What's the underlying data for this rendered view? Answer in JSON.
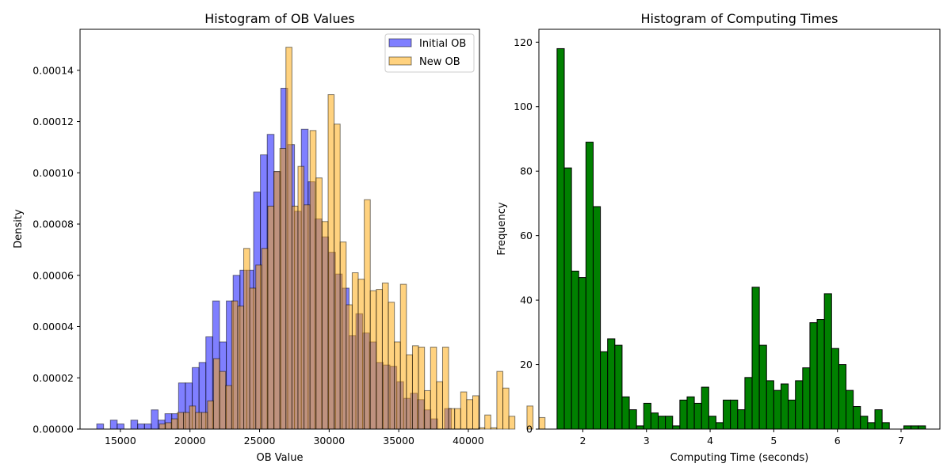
{
  "chart_data": [
    {
      "type": "histogram",
      "title": "Histogram of OB Values",
      "xlabel": "OB Value",
      "ylabel": "Density",
      "xlim": [
        12100,
        40800
      ],
      "ylim": [
        0,
        0.000156
      ],
      "x_ticks": [
        15000,
        20000,
        25000,
        30000,
        35000,
        40000
      ],
      "x_tick_labels": [
        "15000",
        "20000",
        "25000",
        "30000",
        "35000",
        "40000"
      ],
      "y_ticks": [
        0,
        2e-05,
        4e-05,
        6e-05,
        8e-05,
        0.0001,
        0.00012,
        0.00014
      ],
      "y_tick_labels": [
        "0.00000",
        "0.00002",
        "0.00004",
        "0.00006",
        "0.00008",
        "0.00010",
        "0.00012",
        "0.00014"
      ],
      "legend_position": "top-right",
      "series": [
        {
          "name": "Initial OB",
          "color": "#0000ff",
          "alpha": 0.5,
          "bin_start": 13300,
          "bin_width": 490,
          "values": [
            2e-06,
            0,
            3.5e-06,
            2e-06,
            0,
            3.5e-06,
            2e-06,
            2e-06,
            7.5e-06,
            3.5e-06,
            6e-06,
            6e-06,
            1.8e-05,
            1.8e-05,
            2.4e-05,
            2.6e-05,
            3.6e-05,
            5e-05,
            3.4e-05,
            5e-05,
            6e-05,
            6.2e-05,
            6.2e-05,
            9.25e-05,
            0.000107,
            0.000115,
            0.0001005,
            0.000133,
            0.000111,
            8.5e-05,
            0.000117,
            9.65e-05,
            8.2e-05,
            7.5e-05,
            6.9e-05,
            6.05e-05,
            5.5e-05,
            3.65e-05,
            4.5e-05,
            3.75e-05,
            3.4e-05,
            2.6e-05,
            2.5e-05,
            2.45e-05,
            1.85e-05,
            1.2e-05,
            1.4e-05,
            1.15e-05,
            7.5e-06,
            4e-06,
            0,
            8e-06
          ]
        },
        {
          "name": "New OB",
          "color": "#ffa500",
          "alpha": 0.5,
          "bin_start": 17800,
          "bin_width": 433,
          "values": [
            2e-06,
            2.5e-06,
            4e-06,
            6.5e-06,
            6.5e-06,
            9e-06,
            6.5e-06,
            6.5e-06,
            1.1e-05,
            2.75e-05,
            2.25e-05,
            1.7e-05,
            5e-05,
            4.8e-05,
            7.05e-05,
            5.5e-05,
            6.4e-05,
            7.05e-05,
            8.7e-05,
            0.0001005,
            0.0001095,
            0.000149,
            8.7e-05,
            0.0001025,
            8.75e-05,
            0.0001165,
            9.8e-05,
            8.1e-05,
            0.0001305,
            0.000119,
            7.3e-05,
            4.85e-05,
            6.1e-05,
            5.85e-05,
            8.95e-05,
            5.4e-05,
            5.45e-05,
            5.7e-05,
            4.95e-05,
            3.4e-05,
            5.65e-05,
            2.9e-05,
            3.25e-05,
            3.2e-05,
            1.5e-05,
            3.2e-05,
            1.85e-05,
            3.2e-05,
            8e-06,
            8e-06,
            1.45e-05,
            1.15e-05,
            1.3e-05,
            5e-07,
            5.5e-06,
            5e-07,
            2.25e-05,
            1.6e-05,
            5e-06,
            0,
            0,
            9e-06,
            0,
            4.5e-06
          ]
        }
      ]
    },
    {
      "type": "histogram",
      "title": "Histogram of Computing Times",
      "xlabel": "Computing Time (seconds)",
      "ylabel": "Frequency",
      "xlim": [
        1.31,
        7.61
      ],
      "ylim": [
        0,
        124
      ],
      "x_ticks": [
        2,
        3,
        4,
        5,
        6,
        7
      ],
      "x_tick_labels": [
        "2",
        "3",
        "4",
        "5",
        "6",
        "7"
      ],
      "y_ticks": [
        0,
        20,
        40,
        60,
        80,
        100,
        120
      ],
      "y_tick_labels": [
        "0",
        "20",
        "40",
        "60",
        "80",
        "100",
        "120"
      ],
      "series": [
        {
          "color": "#008000",
          "alpha": 1,
          "bin_start": 1.595,
          "bin_width": 0.1135,
          "values": [
            118,
            81,
            49,
            47,
            89,
            69,
            24,
            28,
            26,
            10,
            6,
            1,
            8,
            5,
            4,
            4,
            1,
            9,
            10,
            8,
            13,
            4,
            2,
            9,
            9,
            6,
            16,
            44,
            26,
            15,
            12,
            14,
            9,
            15,
            19,
            33,
            34,
            42,
            25,
            20,
            12,
            7,
            4,
            2,
            6,
            2,
            0,
            0,
            1,
            1,
            1
          ]
        }
      ]
    }
  ]
}
